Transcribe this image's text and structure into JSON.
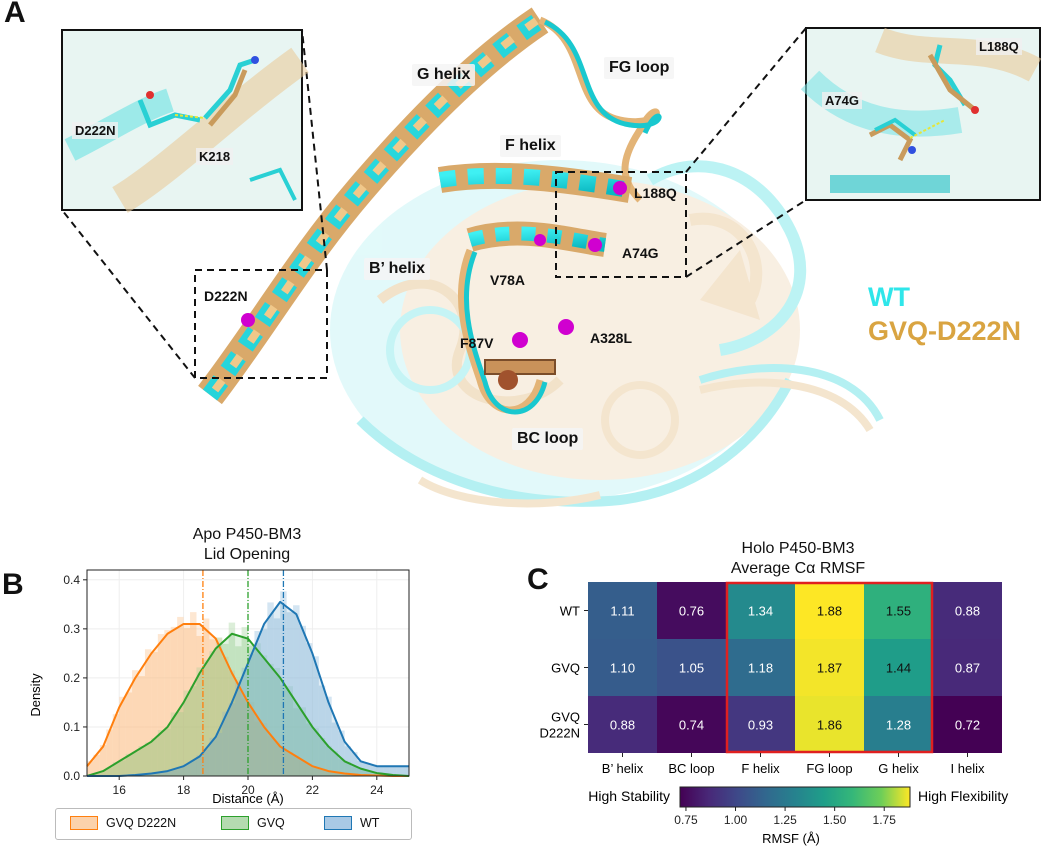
{
  "panel_a": {
    "letter": "A",
    "structure_labels": {
      "g_helix": "G helix",
      "fg_loop": "FG loop",
      "f_helix": "F helix",
      "b_helix": "B’ helix",
      "bc_loop": "BC loop"
    },
    "mutations": {
      "l188q": "L188Q",
      "a74g": "A74G",
      "v78a": "V78A",
      "d222n": "D222N",
      "f87v": "F87V",
      "a328l": "A328L"
    },
    "inset_left": {
      "label1": "D222N",
      "label2": "K218"
    },
    "inset_right": {
      "label1": "L188Q",
      "label2": "A74G"
    },
    "legend": {
      "wt": "WT",
      "mutant": "GVQ-D222N",
      "wt_color": "#2fe6ea",
      "mutant_color": "#d9a441"
    }
  },
  "panel_b": {
    "letter": "B",
    "legend": {
      "gvq_d222n": "GVQ D222N",
      "gvq": "GVQ",
      "wt": "WT"
    },
    "chart_data": {
      "type": "area",
      "title": "Apo P450-BM3\nLid Opening",
      "title_line1": "Apo P450-BM3",
      "title_line2": "Lid Opening",
      "xlabel": "Distance (Å)",
      "ylabel": "Density",
      "xlim": [
        15,
        25
      ],
      "ylim": [
        0,
        0.42
      ],
      "x_ticks": [
        "16",
        "18",
        "20",
        "22",
        "24"
      ],
      "x_tick_values": [
        16,
        18,
        20,
        22,
        24
      ],
      "y_ticks": [
        "0.0",
        "0.1",
        "0.2",
        "0.3",
        "0.4"
      ],
      "y_tick_values": [
        0,
        0.1,
        0.2,
        0.3,
        0.4
      ],
      "series": [
        {
          "name": "GVQ D222N",
          "color": "#ff7f0e",
          "mean": 18.6,
          "x": [
            15,
            15.5,
            16,
            16.5,
            17,
            17.5,
            18,
            18.5,
            19,
            19.5,
            20,
            20.5,
            21,
            21.5,
            22,
            22.5,
            23,
            23.5,
            24,
            24.5,
            25
          ],
          "y": [
            0.02,
            0.06,
            0.14,
            0.2,
            0.25,
            0.29,
            0.31,
            0.31,
            0.28,
            0.21,
            0.15,
            0.1,
            0.06,
            0.04,
            0.02,
            0.01,
            0.005,
            0.002,
            0.001,
            0.0,
            0.0
          ]
        },
        {
          "name": "GVQ",
          "color": "#2ca02c",
          "mean": 20.0,
          "x": [
            15,
            15.5,
            16,
            16.5,
            17,
            17.5,
            18,
            18.5,
            19,
            19.5,
            20,
            20.5,
            21,
            21.5,
            22,
            22.5,
            23,
            23.5,
            24,
            24.5,
            25
          ],
          "y": [
            0.0,
            0.01,
            0.03,
            0.05,
            0.07,
            0.1,
            0.15,
            0.21,
            0.26,
            0.29,
            0.28,
            0.24,
            0.2,
            0.15,
            0.1,
            0.06,
            0.03,
            0.015,
            0.006,
            0.002,
            0.0
          ]
        },
        {
          "name": "WT",
          "color": "#1f77b4",
          "mean": 21.1,
          "x": [
            15,
            15.5,
            16,
            16.5,
            17,
            17.5,
            18,
            18.5,
            19,
            19.5,
            20,
            20.5,
            21,
            21.5,
            22,
            22.5,
            23,
            23.5,
            24,
            24.5,
            25
          ],
          "y": [
            0.0,
            0.0,
            0.0,
            0.002,
            0.005,
            0.01,
            0.02,
            0.04,
            0.08,
            0.15,
            0.23,
            0.31,
            0.355,
            0.33,
            0.25,
            0.15,
            0.07,
            0.03,
            0.02,
            0.02,
            0.02
          ]
        }
      ]
    }
  },
  "panel_c": {
    "letter": "C",
    "colorbar": {
      "left_label": "High Stability",
      "right_label": "High Flexibility",
      "label": "RMSF (Å)",
      "ticks": [
        "0.75",
        "1.00",
        "1.25",
        "1.50",
        "1.75"
      ],
      "tick_values": [
        0.75,
        1.0,
        1.25,
        1.5,
        1.75
      ],
      "range": [
        0.72,
        1.88
      ]
    },
    "chart_data": {
      "type": "heatmap",
      "title": "Holo P450-BM3\nAverage Cα RMSF",
      "title_line1": "Holo P450-BM3",
      "title_line2": "Average Cα RMSF",
      "columns": [
        "B’ helix",
        "BC loop",
        "F helix",
        "FG loop",
        "G helix",
        "I helix"
      ],
      "rows": [
        "WT",
        "GVQ",
        "GVQ\nD222N"
      ],
      "row_lines": [
        [
          "WT"
        ],
        [
          "GVQ"
        ],
        [
          "GVQ",
          "D222N"
        ]
      ],
      "values": [
        [
          1.11,
          0.76,
          1.34,
          1.88,
          1.55,
          0.88
        ],
        [
          1.1,
          1.05,
          1.18,
          1.87,
          1.44,
          0.87
        ],
        [
          0.88,
          0.74,
          0.93,
          1.86,
          1.28,
          0.72
        ]
      ],
      "value_labels": [
        [
          "1.11",
          "0.76",
          "1.34",
          "1.88",
          "1.55",
          "0.88"
        ],
        [
          "1.10",
          "1.05",
          "1.18",
          "1.87",
          "1.44",
          "0.87"
        ],
        [
          "0.88",
          "0.74",
          "0.93",
          "1.86",
          "1.28",
          "0.72"
        ]
      ],
      "highlight_columns": [
        2,
        4
      ],
      "highlight_color": "#e02020"
    }
  }
}
